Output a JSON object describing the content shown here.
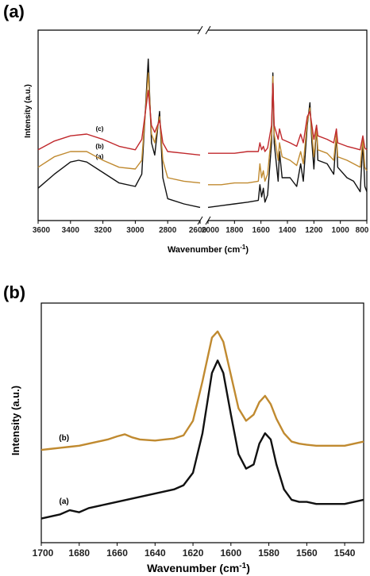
{
  "panels": {
    "a": {
      "label": "(a)"
    },
    "b": {
      "label": "(b)"
    }
  },
  "colors": {
    "a": "#111111",
    "b": "#c08a30",
    "c": "#c0282c"
  },
  "chart_data": [
    {
      "type": "line",
      "xlabel": "Wavenumber (cm",
      "xlabel_sup": "-1",
      "xlabel_close": ")",
      "ylabel": "Intensity (a.u.)",
      "x_reversed": true,
      "broken_axis": {
        "left": [
          3600,
          2600
        ],
        "right": [
          2000,
          800
        ]
      },
      "xticks_left": [
        "3600",
        "3400",
        "3200",
        "3000",
        "2800",
        "2600"
      ],
      "xticks_right": [
        "2000",
        "1800",
        "1600",
        "1400",
        "1200",
        "1000",
        "800"
      ],
      "ylim": [
        0,
        100
      ],
      "grid": false,
      "series": [
        {
          "name": "(a)",
          "left": [
            [
              3600,
              14
            ],
            [
              3500,
              22
            ],
            [
              3400,
              29
            ],
            [
              3350,
              30
            ],
            [
              3300,
              29
            ],
            [
              3200,
              23
            ],
            [
              3100,
              17
            ],
            [
              3000,
              15
            ],
            [
              2960,
              22
            ],
            [
              2920,
              88
            ],
            [
              2900,
              40
            ],
            [
              2880,
              33
            ],
            [
              2850,
              58
            ],
            [
              2830,
              20
            ],
            [
              2800,
              8
            ],
            [
              2700,
              5
            ],
            [
              2600,
              3
            ]
          ],
          "right": [
            [
              2000,
              3
            ],
            [
              1900,
              4
            ],
            [
              1800,
              5
            ],
            [
              1700,
              6
            ],
            [
              1620,
              7
            ],
            [
              1608,
              16
            ],
            [
              1595,
              9
            ],
            [
              1582,
              14
            ],
            [
              1570,
              6
            ],
            [
              1550,
              10
            ],
            [
              1520,
              40
            ],
            [
              1510,
              80
            ],
            [
              1500,
              40
            ],
            [
              1470,
              18
            ],
            [
              1460,
              35
            ],
            [
              1440,
              20
            ],
            [
              1380,
              20
            ],
            [
              1330,
              15
            ],
            [
              1300,
              28
            ],
            [
              1280,
              18
            ],
            [
              1250,
              50
            ],
            [
              1230,
              63
            ],
            [
              1215,
              40
            ],
            [
              1200,
              25
            ],
            [
              1180,
              50
            ],
            [
              1170,
              30
            ],
            [
              1100,
              28
            ],
            [
              1050,
              22
            ],
            [
              1030,
              45
            ],
            [
              1020,
              26
            ],
            [
              950,
              20
            ],
            [
              900,
              18
            ],
            [
              850,
              12
            ],
            [
              830,
              40
            ],
            [
              815,
              15
            ],
            [
              800,
              12
            ]
          ]
        },
        {
          "name": "(b)",
          "left": [
            [
              3600,
              26
            ],
            [
              3500,
              32
            ],
            [
              3400,
              35
            ],
            [
              3300,
              35
            ],
            [
              3200,
              30
            ],
            [
              3100,
              26
            ],
            [
              3000,
              25
            ],
            [
              2960,
              30
            ],
            [
              2920,
              80
            ],
            [
              2900,
              45
            ],
            [
              2880,
              40
            ],
            [
              2850,
              55
            ],
            [
              2830,
              30
            ],
            [
              2800,
              20
            ],
            [
              2700,
              18
            ],
            [
              2600,
              17
            ]
          ],
          "right": [
            [
              2000,
              16
            ],
            [
              1900,
              16
            ],
            [
              1800,
              17
            ],
            [
              1700,
              17
            ],
            [
              1620,
              18
            ],
            [
              1608,
              28
            ],
            [
              1595,
              20
            ],
            [
              1582,
              24
            ],
            [
              1570,
              18
            ],
            [
              1550,
              22
            ],
            [
              1520,
              45
            ],
            [
              1510,
              78
            ],
            [
              1500,
              45
            ],
            [
              1470,
              30
            ],
            [
              1460,
              40
            ],
            [
              1440,
              32
            ],
            [
              1380,
              30
            ],
            [
              1330,
              27
            ],
            [
              1300,
              35
            ],
            [
              1280,
              28
            ],
            [
              1250,
              52
            ],
            [
              1230,
              60
            ],
            [
              1215,
              45
            ],
            [
              1200,
              32
            ],
            [
              1180,
              48
            ],
            [
              1170,
              36
            ],
            [
              1100,
              34
            ],
            [
              1050,
              30
            ],
            [
              1030,
              45
            ],
            [
              1020,
              32
            ],
            [
              950,
              30
            ],
            [
              900,
              28
            ],
            [
              850,
              26
            ],
            [
              830,
              42
            ],
            [
              815,
              26
            ],
            [
              800,
              24
            ]
          ]
        },
        {
          "name": "(c)",
          "left": [
            [
              3600,
              36
            ],
            [
              3500,
              41
            ],
            [
              3400,
              44
            ],
            [
              3300,
              45
            ],
            [
              3200,
              42
            ],
            [
              3100,
              38
            ],
            [
              3000,
              36
            ],
            [
              2960,
              42
            ],
            [
              2920,
              70
            ],
            [
              2900,
              50
            ],
            [
              2880,
              46
            ],
            [
              2850,
              53
            ],
            [
              2830,
              40
            ],
            [
              2800,
              35
            ],
            [
              2700,
              34
            ],
            [
              2600,
              33
            ]
          ],
          "right": [
            [
              2000,
              34
            ],
            [
              1900,
              34
            ],
            [
              1800,
              34
            ],
            [
              1700,
              35
            ],
            [
              1620,
              35
            ],
            [
              1608,
              40
            ],
            [
              1595,
              36
            ],
            [
              1582,
              38
            ],
            [
              1570,
              35
            ],
            [
              1550,
              37
            ],
            [
              1520,
              50
            ],
            [
              1510,
              74
            ],
            [
              1500,
              50
            ],
            [
              1470,
              42
            ],
            [
              1460,
              48
            ],
            [
              1440,
              42
            ],
            [
              1380,
              40
            ],
            [
              1330,
              38
            ],
            [
              1300,
              45
            ],
            [
              1280,
              40
            ],
            [
              1250,
              55
            ],
            [
              1230,
              58
            ],
            [
              1215,
              50
            ],
            [
              1200,
              42
            ],
            [
              1180,
              50
            ],
            [
              1170,
              44
            ],
            [
              1100,
              42
            ],
            [
              1050,
              40
            ],
            [
              1030,
              48
            ],
            [
              1020,
              40
            ],
            [
              950,
              38
            ],
            [
              900,
              37
            ],
            [
              850,
              36
            ],
            [
              830,
              44
            ],
            [
              815,
              37
            ],
            [
              800,
              36
            ]
          ]
        }
      ]
    },
    {
      "type": "line",
      "xlabel": "Wavenumber (cm",
      "xlabel_sup": "-1",
      "xlabel_close": ")",
      "ylabel": "Intensity (a.u.)",
      "x_reversed": true,
      "xlim": [
        1700,
        1530
      ],
      "xticks": [
        "1700",
        "1680",
        "1660",
        "1640",
        "1620",
        "1600",
        "1580",
        "1560",
        "1540"
      ],
      "ylim": [
        0,
        100
      ],
      "grid": false,
      "series": [
        {
          "name": "(a)",
          "points": [
            [
              1700,
              4
            ],
            [
              1695,
              5
            ],
            [
              1690,
              6
            ],
            [
              1685,
              8
            ],
            [
              1680,
              7
            ],
            [
              1675,
              9
            ],
            [
              1670,
              10
            ],
            [
              1665,
              11
            ],
            [
              1660,
              12
            ],
            [
              1655,
              13
            ],
            [
              1650,
              14
            ],
            [
              1645,
              15
            ],
            [
              1640,
              16
            ],
            [
              1635,
              17
            ],
            [
              1630,
              18
            ],
            [
              1625,
              20
            ],
            [
              1620,
              26
            ],
            [
              1615,
              45
            ],
            [
              1610,
              74
            ],
            [
              1607,
              80
            ],
            [
              1604,
              74
            ],
            [
              1600,
              54
            ],
            [
              1596,
              35
            ],
            [
              1592,
              28
            ],
            [
              1588,
              30
            ],
            [
              1585,
              40
            ],
            [
              1582,
              45
            ],
            [
              1579,
              42
            ],
            [
              1576,
              30
            ],
            [
              1572,
              18
            ],
            [
              1568,
              13
            ],
            [
              1564,
              12
            ],
            [
              1560,
              12
            ],
            [
              1555,
              11
            ],
            [
              1550,
              11
            ],
            [
              1545,
              11
            ],
            [
              1540,
              11
            ],
            [
              1535,
              12
            ],
            [
              1530,
              13
            ]
          ]
        },
        {
          "name": "(b)",
          "points": [
            [
              1700,
              37
            ],
            [
              1695,
              37.5
            ],
            [
              1690,
              38
            ],
            [
              1685,
              38.5
            ],
            [
              1680,
              39
            ],
            [
              1675,
              40
            ],
            [
              1670,
              41
            ],
            [
              1665,
              42
            ],
            [
              1660,
              43.5
            ],
            [
              1656,
              44.5
            ],
            [
              1652,
              43
            ],
            [
              1648,
              42
            ],
            [
              1640,
              41.5
            ],
            [
              1635,
              42
            ],
            [
              1630,
              42.5
            ],
            [
              1625,
              44
            ],
            [
              1620,
              51
            ],
            [
              1615,
              70
            ],
            [
              1610,
              91
            ],
            [
              1607,
              94
            ],
            [
              1604,
              89
            ],
            [
              1600,
              73
            ],
            [
              1596,
              57
            ],
            [
              1592,
              51
            ],
            [
              1588,
              54
            ],
            [
              1585,
              60
            ],
            [
              1582,
              63
            ],
            [
              1579,
              59
            ],
            [
              1576,
              52
            ],
            [
              1572,
              45
            ],
            [
              1568,
              41
            ],
            [
              1564,
              40
            ],
            [
              1560,
              39.5
            ],
            [
              1555,
              39
            ],
            [
              1550,
              39
            ],
            [
              1545,
              39
            ],
            [
              1540,
              39
            ],
            [
              1535,
              40
            ],
            [
              1530,
              41
            ]
          ]
        }
      ]
    }
  ]
}
